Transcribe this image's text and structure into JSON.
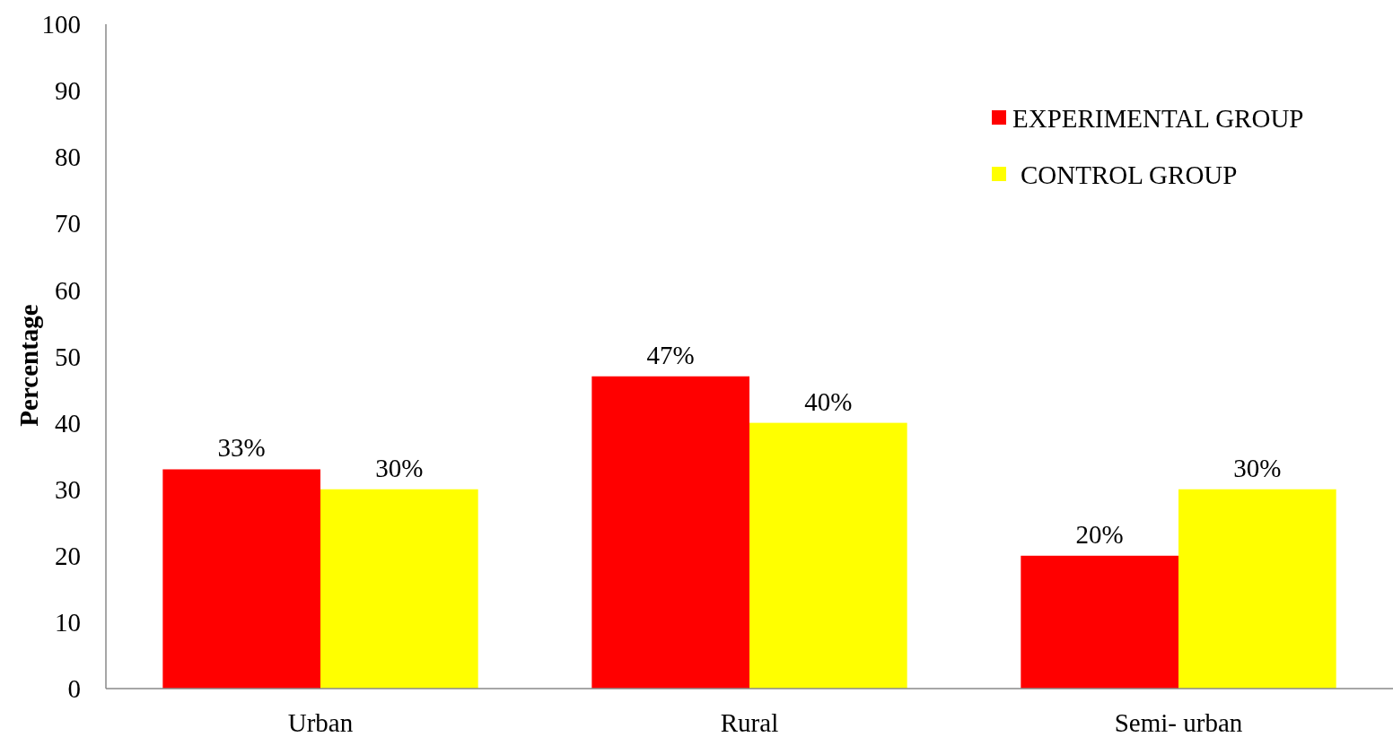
{
  "chart_data": {
    "type": "bar",
    "ylabel": "Percentage",
    "categories": [
      "Urban",
      "Rural",
      "Semi- urban"
    ],
    "series": [
      {
        "name": "EXPERIMENTAL GROUP",
        "color": "#ff0000",
        "values": [
          33,
          47,
          20
        ],
        "value_labels": [
          "33%",
          "47%",
          "20%"
        ]
      },
      {
        "name": "CONTROL GROUP",
        "color": "#ffff00",
        "values": [
          30,
          40,
          30
        ],
        "value_labels": [
          "30%",
          "40%",
          "30%"
        ]
      }
    ],
    "ylim": [
      0,
      100
    ],
    "yticks": [
      0,
      10,
      20,
      30,
      40,
      50,
      60,
      70,
      80,
      90,
      100
    ],
    "legend": "top right"
  }
}
